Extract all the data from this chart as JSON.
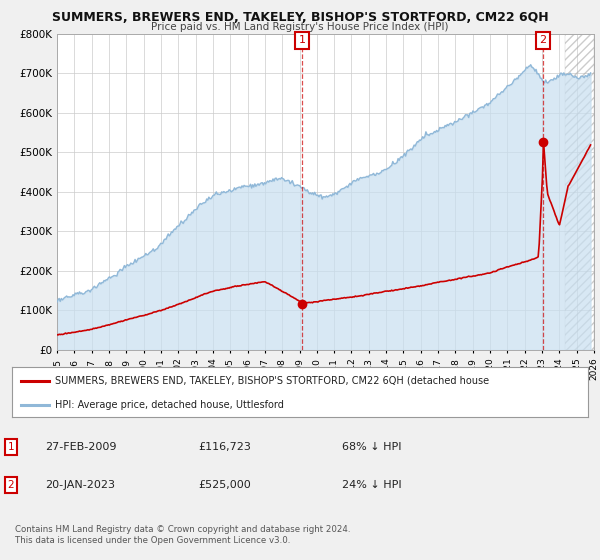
{
  "title": "SUMMERS, BREWERS END, TAKELEY, BISHOP'S STORTFORD, CM22 6QH",
  "subtitle": "Price paid vs. HM Land Registry's House Price Index (HPI)",
  "xmin": 1995,
  "xmax": 2026,
  "ymin": 0,
  "ymax": 800000,
  "yticks": [
    0,
    100000,
    200000,
    300000,
    400000,
    500000,
    600000,
    700000,
    800000
  ],
  "ytick_labels": [
    "£0",
    "£100K",
    "£200K",
    "£300K",
    "£400K",
    "£500K",
    "£600K",
    "£700K",
    "£800K"
  ],
  "hpi_color": "#90b8d8",
  "hpi_fill_color": "#c8dff0",
  "price_color": "#cc0000",
  "marker1_x": 2009.15,
  "marker1_y": 116723,
  "marker2_x": 2023.05,
  "marker2_y": 525000,
  "hatch_start": 2024.3,
  "legend_label1": "SUMMERS, BREWERS END, TAKELEY, BISHOP'S STORTFORD, CM22 6QH (detached house",
  "legend_label2": "HPI: Average price, detached house, Uttlesford",
  "annotation1_date": "27-FEB-2009",
  "annotation1_price": "£116,723",
  "annotation1_hpi": "68% ↓ HPI",
  "annotation2_date": "20-JAN-2023",
  "annotation2_price": "£525,000",
  "annotation2_hpi": "24% ↓ HPI",
  "footnote1": "Contains HM Land Registry data © Crown copyright and database right 2024.",
  "footnote2": "This data is licensed under the Open Government Licence v3.0.",
  "background_color": "#f0f0f0",
  "plot_bg_color": "#ffffff",
  "grid_color": "#cccccc",
  "spine_color": "#aaaaaa"
}
